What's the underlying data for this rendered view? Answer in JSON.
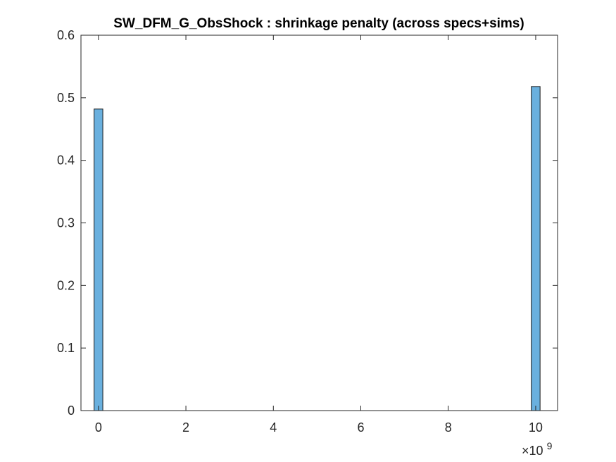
{
  "chart_data": {
    "type": "bar",
    "title": "SW_DFM_G_ObsShock : shrinkage penalty (across specs+sims)",
    "xlabel": "",
    "ylabel": "",
    "x_exponent_label": "×10",
    "x_exponent_power": "9",
    "xlim": [
      -0.4,
      10.5
    ],
    "ylim": [
      0,
      0.6
    ],
    "x_ticks": [
      0,
      2,
      4,
      6,
      8,
      10
    ],
    "x_tick_labels": [
      "0",
      "2",
      "4",
      "6",
      "8",
      "10"
    ],
    "y_ticks": [
      0,
      0.1,
      0.2,
      0.3,
      0.4,
      0.5,
      0.6
    ],
    "y_tick_labels": [
      "0",
      "0.1",
      "0.2",
      "0.3",
      "0.4",
      "0.5",
      "0.6"
    ],
    "bin_width": 0.2,
    "bin_centers": [
      0,
      0.2,
      0.4,
      0.6,
      0.8,
      1.0,
      1.2,
      1.4,
      1.6,
      1.8,
      2.0,
      2.2,
      2.4,
      2.6,
      2.8,
      3.0,
      3.2,
      3.4,
      3.6,
      3.8,
      4.0,
      4.2,
      4.4,
      4.6,
      4.8,
      5.0,
      5.2,
      5.4,
      5.6,
      5.8,
      6.0,
      6.2,
      6.4,
      6.6,
      6.8,
      7.0,
      7.2,
      7.4,
      7.6,
      7.8,
      8.0,
      8.2,
      8.4,
      8.6,
      8.8,
      9.0,
      9.2,
      9.4,
      9.6,
      9.8,
      10.0
    ],
    "values": [
      0.482,
      0,
      0,
      0,
      0,
      0,
      0,
      0,
      0,
      0,
      0,
      0,
      0,
      0,
      0,
      0,
      0,
      0,
      0,
      0,
      0,
      0,
      0,
      0,
      0,
      0,
      0,
      0,
      0,
      0,
      0,
      0,
      0,
      0,
      0,
      0,
      0,
      0,
      0,
      0,
      0,
      0,
      0,
      0,
      0,
      0,
      0,
      0,
      0,
      0,
      0.518
    ],
    "bar_color": "#6ab0de",
    "bar_edge_color": "#1a1a1a",
    "grid": false,
    "box": true
  }
}
